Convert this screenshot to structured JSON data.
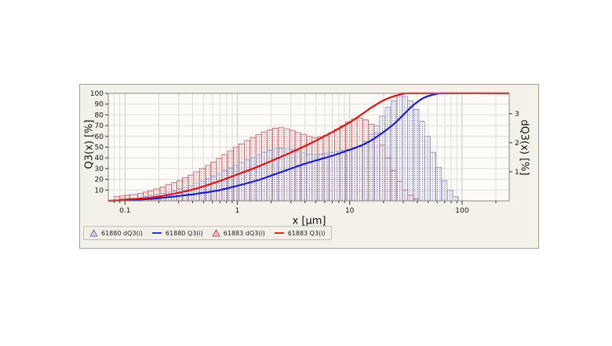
{
  "window": {
    "description": "Particle size distribution chart panel (cumulative Q3 and density dQ3 histograms for samples 61880 and 61883)"
  },
  "colors": {
    "panel_bg": "#f4f1ea",
    "panel_border": "#a9a49b",
    "plot_bg": "#fcfbf7",
    "plot_frame": "#8f8b82",
    "grid_minor": "#e0ddd6",
    "grid_major": "#cbc8c0",
    "tick": "#3a3a3a",
    "label": "#111111",
    "blue_line": "#1e1ec8",
    "red_line": "#e01313",
    "blue_hist_outline": "#9b9bc8",
    "blue_hist_dots": "#4646a0",
    "red_hist_outline": "#c86e78",
    "red_hist_dots": "#c03a3a"
  },
  "legend": {
    "items": [
      {
        "label": "61880 dQ3(i)",
        "type": "histogram",
        "color": "#7070b4"
      },
      {
        "label": "61880 Q3(i)",
        "type": "line",
        "color": "#1e1ec8"
      },
      {
        "label": "61883 dQ3(i)",
        "type": "histogram",
        "color": "#c05060"
      },
      {
        "label": "61883 Q3(i)",
        "type": "line",
        "color": "#e01313"
      }
    ]
  },
  "chart_data": {
    "type": "mixed-histogram-line",
    "title": "",
    "x_axis": {
      "label": "x [µm]",
      "scale": "log",
      "min": 0.071,
      "max": 263,
      "decade_ticks": [
        0.1,
        1,
        10,
        100
      ],
      "decade_tick_labels": [
        "0.1",
        "1",
        "10",
        "100"
      ]
    },
    "y_left_axis": {
      "label": "Q3(x) [%]",
      "min": 0,
      "max": 100,
      "ticks": [
        10,
        20,
        30,
        40,
        50,
        60,
        70,
        80,
        90,
        100
      ],
      "tick_labels": [
        "10",
        "20",
        "30",
        "40",
        "50",
        "60",
        "70",
        "80",
        "90",
        "100"
      ]
    },
    "y_right_axis": {
      "label": "dQ3(x) [%]",
      "min": 0,
      "max": 3.7,
      "ticks": [
        1,
        2,
        3
      ],
      "tick_labels": [
        "1",
        "2",
        "3"
      ]
    },
    "grid": true,
    "legend_position": "bottom-left",
    "series": [
      {
        "name": "61883 dQ3(i)",
        "type": "histogram",
        "axis": "right",
        "outline_color": "#c86e78",
        "dot_color": "#c03a3a",
        "class_upper_bounds_um": [
          0.08,
          0.09,
          0.1,
          0.11,
          0.13,
          0.145,
          0.16,
          0.18,
          0.205,
          0.23,
          0.26,
          0.29,
          0.325,
          0.365,
          0.41,
          0.46,
          0.52,
          0.58,
          0.65,
          0.73,
          0.82,
          0.92,
          1.03,
          1.16,
          1.3,
          1.46,
          1.64,
          1.84,
          2.06,
          2.31,
          2.6,
          2.92,
          3.27,
          3.67,
          4.12,
          4.62,
          5.19,
          5.82,
          6.54,
          7.34,
          8.23,
          9.24,
          10.37,
          11.64,
          13.06,
          14.66,
          16.45,
          18.46,
          20.72,
          23.25,
          26.09,
          29.28,
          32.86,
          36.88,
          41.39
        ],
        "values_dQ3_pct": [
          0.15,
          0.17,
          0.19,
          0.22,
          0.26,
          0.3,
          0.35,
          0.41,
          0.48,
          0.56,
          0.63,
          0.7,
          0.8,
          0.89,
          1.0,
          1.11,
          1.22,
          1.33,
          1.46,
          1.59,
          1.72,
          1.85,
          1.96,
          2.07,
          2.18,
          2.28,
          2.37,
          2.44,
          2.5,
          2.52,
          2.48,
          2.42,
          2.35,
          2.28,
          2.22,
          2.18,
          2.2,
          2.26,
          2.35,
          2.46,
          2.59,
          2.72,
          2.81,
          2.85,
          2.79,
          2.63,
          2.33,
          1.92,
          1.48,
          1.04,
          0.67,
          0.37,
          0.19,
          0.07
        ]
      },
      {
        "name": "61880 dQ3(i)",
        "type": "histogram",
        "axis": "right",
        "outline_color": "#9b9bc8",
        "dot_color": "#4646a0",
        "class_upper_bounds_um": [
          0.09,
          0.1,
          0.11,
          0.13,
          0.145,
          0.16,
          0.18,
          0.205,
          0.23,
          0.26,
          0.29,
          0.325,
          0.365,
          0.41,
          0.46,
          0.52,
          0.58,
          0.65,
          0.73,
          0.82,
          0.92,
          1.03,
          1.16,
          1.3,
          1.46,
          1.64,
          1.84,
          2.06,
          2.31,
          2.6,
          2.92,
          3.27,
          3.67,
          4.12,
          4.62,
          5.19,
          5.82,
          6.54,
          7.34,
          8.23,
          9.24,
          10.37,
          11.64,
          13.06,
          14.66,
          16.45,
          18.46,
          20.72,
          23.25,
          26.09,
          29.28,
          32.86,
          36.88,
          41.39,
          46.45,
          52.13,
          58.5,
          65.65,
          73.68,
          82.68,
          92.79
        ],
        "values_dQ3_pct": [
          0.06,
          0.07,
          0.09,
          0.11,
          0.15,
          0.19,
          0.22,
          0.26,
          0.3,
          0.35,
          0.41,
          0.46,
          0.52,
          0.59,
          0.67,
          0.76,
          0.85,
          0.94,
          1.04,
          1.13,
          1.22,
          1.31,
          1.41,
          1.5,
          1.59,
          1.67,
          1.74,
          1.79,
          1.81,
          1.79,
          1.76,
          1.7,
          1.65,
          1.61,
          1.59,
          1.61,
          1.63,
          1.67,
          1.7,
          1.74,
          1.78,
          1.79,
          1.85,
          2.04,
          2.29,
          2.59,
          2.92,
          3.22,
          3.44,
          3.59,
          3.59,
          3.44,
          3.15,
          2.74,
          2.22,
          1.67,
          1.15,
          0.7,
          0.37,
          0.15
        ]
      },
      {
        "name": "61880 Q3(i)",
        "type": "line",
        "axis": "left",
        "color": "#1e1ec8",
        "points_x_um_y_pct": [
          [
            0.071,
            0
          ],
          [
            0.1,
            0.5
          ],
          [
            0.15,
            1.5
          ],
          [
            0.2,
            2.5
          ],
          [
            0.3,
            4.5
          ],
          [
            0.4,
            6
          ],
          [
            0.5,
            7.5
          ],
          [
            0.7,
            10
          ],
          [
            1,
            14
          ],
          [
            1.5,
            19
          ],
          [
            2,
            23.5
          ],
          [
            3,
            30
          ],
          [
            4,
            34.5
          ],
          [
            5,
            37.5
          ],
          [
            7,
            42
          ],
          [
            10,
            47.5
          ],
          [
            13,
            52
          ],
          [
            16,
            57
          ],
          [
            20,
            64
          ],
          [
            25,
            72
          ],
          [
            30,
            80
          ],
          [
            35,
            87
          ],
          [
            40,
            92
          ],
          [
            45,
            95.5
          ],
          [
            50,
            97.5
          ],
          [
            60,
            99.5
          ],
          [
            70,
            100
          ],
          [
            263,
            100
          ]
        ]
      },
      {
        "name": "61883 Q3(i)",
        "type": "line",
        "axis": "left",
        "color": "#e01313",
        "points_x_um_y_pct": [
          [
            0.071,
            0
          ],
          [
            0.1,
            1
          ],
          [
            0.15,
            2.5
          ],
          [
            0.2,
            4
          ],
          [
            0.3,
            7.5
          ],
          [
            0.4,
            10.5
          ],
          [
            0.5,
            13.5
          ],
          [
            0.7,
            18.5
          ],
          [
            1,
            24.5
          ],
          [
            1.5,
            31.5
          ],
          [
            2,
            37
          ],
          [
            3,
            45
          ],
          [
            4,
            51
          ],
          [
            5,
            56
          ],
          [
            7,
            64
          ],
          [
            10,
            73
          ],
          [
            13,
            81
          ],
          [
            16,
            87.5
          ],
          [
            20,
            93.5
          ],
          [
            25,
            97.5
          ],
          [
            30,
            99.5
          ],
          [
            35,
            100
          ],
          [
            263,
            100
          ]
        ]
      }
    ]
  }
}
